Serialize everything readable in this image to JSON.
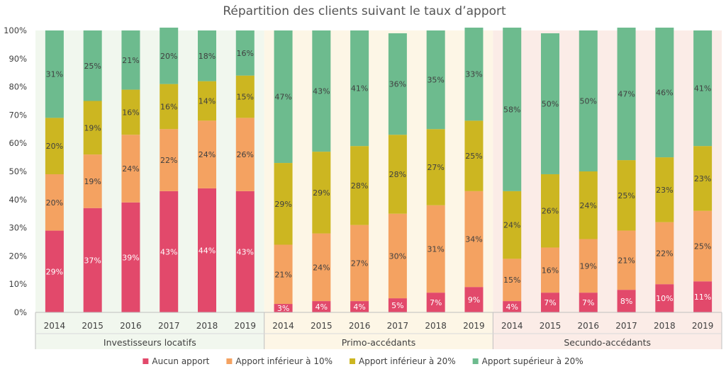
{
  "chart_data": {
    "type": "bar",
    "stacked": true,
    "percent_stacked": true,
    "title": "Répartition des clients suivant le taux d’apport",
    "xlabel": "",
    "ylabel": "",
    "ylim": [
      0,
      100
    ],
    "y_ticks": [
      "0%",
      "10%",
      "20%",
      "30%",
      "40%",
      "50%",
      "60%",
      "70%",
      "80%",
      "90%",
      "100%"
    ],
    "grid": false,
    "legend_position": "bottom",
    "groups": [
      {
        "name": "Investisseurs locatifs",
        "background": "#f1f7ee",
        "categories": [
          "2014",
          "2015",
          "2016",
          "2017",
          "2018",
          "2019"
        ]
      },
      {
        "name": "Primo-accédants",
        "background": "#fdf6e6",
        "categories": [
          "2014",
          "2015",
          "2016",
          "2017",
          "2018",
          "2019"
        ]
      },
      {
        "name": "Secundo-accédants",
        "background": "#fbece7",
        "categories": [
          "2014",
          "2015",
          "2016",
          "2017",
          "2018",
          "2019"
        ]
      }
    ],
    "series": [
      {
        "name": "Aucun apport",
        "color": "#e2496b",
        "label_color": "#ffffff",
        "values": [
          29,
          37,
          39,
          43,
          44,
          43,
          3,
          4,
          4,
          5,
          7,
          9,
          4,
          7,
          7,
          8,
          10,
          11
        ],
        "labels": [
          "29%",
          "37%",
          "39%",
          "43%",
          "44%",
          "43%",
          "3%",
          "4%",
          "4%",
          "5%",
          "7%",
          "9%",
          "4%",
          "7%",
          "7%",
          "8%",
          "10%",
          "11%"
        ]
      },
      {
        "name": "Apport inférieur à 10%",
        "color": "#f4a261",
        "label_color": "#404040",
        "values": [
          20,
          19,
          24,
          22,
          24,
          26,
          21,
          24,
          27,
          30,
          31,
          34,
          15,
          16,
          19,
          21,
          22,
          25
        ],
        "labels": [
          "20%",
          "19%",
          "24%",
          "22%",
          "24%",
          "26%",
          "21%",
          "24%",
          "27%",
          "30%",
          "31%",
          "34%",
          "15%",
          "16%",
          "19%",
          "21%",
          "22%",
          "25%"
        ]
      },
      {
        "name": "Apport inférieur à 20%",
        "color": "#ccb621",
        "label_color": "#404040",
        "values": [
          20,
          19,
          16,
          16,
          14,
          15,
          29,
          29,
          28,
          28,
          27,
          25,
          24,
          26,
          24,
          25,
          23,
          23
        ],
        "labels": [
          "20%",
          "19%",
          "16%",
          "16%",
          "14%",
          "15%",
          "29%",
          "29%",
          "28%",
          "28%",
          "27%",
          "25%",
          "24%",
          "26%",
          "24%",
          "25%",
          "23%",
          "23%"
        ]
      },
      {
        "name": "Apport supérieur à 20%",
        "color": "#6dbb8e",
        "label_color": "#404040",
        "values": [
          31,
          25,
          21,
          20,
          18,
          16,
          47,
          43,
          41,
          36,
          35,
          33,
          58,
          50,
          50,
          47,
          46,
          41
        ],
        "labels": [
          "31%",
          "25%",
          "21%",
          "20%",
          "18%",
          "16%",
          "47%",
          "43%",
          "41%",
          "36%",
          "35%",
          "33%",
          "58%",
          "50%",
          "50%",
          "47%",
          "46%",
          "41%"
        ]
      }
    ]
  }
}
